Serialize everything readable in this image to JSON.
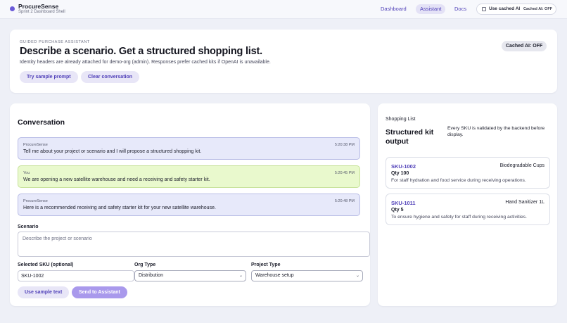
{
  "brand": {
    "name": "ProcureSense",
    "subtitle": "Sprint 2 Dashboard Shell"
  },
  "nav": {
    "dashboard": "Dashboard",
    "assistant": "Assistant",
    "docs": "Docs",
    "active": "Assistant"
  },
  "cached_toggle": {
    "label": "Use cached AI",
    "status": "Cached AI: OFF",
    "checked": false
  },
  "hero": {
    "eyebrow": "GUIDED PURCHASE ASSISTANT",
    "title": "Describe a scenario. Get a structured shopping list.",
    "subtitle": "Identity headers are already attached for demo-org (admin). Responses prefer cached kits if OpenAI is unavailable.",
    "sample_button": "Try sample prompt",
    "clear_button": "Clear conversation",
    "cached_badge": "Cached AI: OFF"
  },
  "conversation": {
    "title": "Conversation",
    "messages": [
      {
        "sender": "ProcureSense",
        "time": "5:20:38 PM",
        "text": "Tell me about your project or scenario and I will propose a structured shopping kit."
      },
      {
        "sender": "You",
        "time": "5:20:45 PM",
        "text": "We are opening a new satellite warehouse and need a receiving and safety starter kit."
      },
      {
        "sender": "ProcureSense",
        "time": "5:20:48 PM",
        "text": "Here is a recommended receiving and safety starter kit for your new satellite warehouse."
      }
    ]
  },
  "form": {
    "scenario_label": "Scenario",
    "scenario_placeholder": "Describe the project or scenario",
    "sku_label": "Selected SKU (optional)",
    "sku_value": "SKU-1002",
    "org_label": "Org Type",
    "org_value": "Distribution",
    "project_label": "Project Type",
    "project_value": "Warehouse setup",
    "use_sample_button": "Use sample text",
    "send_button": "Send to Assistant"
  },
  "shopping_list": {
    "eyebrow": "Shopping List",
    "title": "Structured kit output",
    "note": "Every SKU is validated by the backend before display.",
    "items": [
      {
        "sku": "SKU-1002",
        "name": "Biodegradable Cups",
        "qty": "Qty 100",
        "reason": "For staff hydration and food service during receiving operations."
      },
      {
        "sku": "SKU-1011",
        "name": "Hand Sanitizer 1L",
        "qty": "Qty 5",
        "reason": "To ensure hygiene and safety for staff during receiving activities."
      }
    ]
  },
  "colors": {
    "accent": "#4f3fb8",
    "background": "#eef0f7",
    "assistant_bubble": "#e7e9fa",
    "user_bubble": "#e9f9cd",
    "send_button": "#a999ec"
  },
  "icons": {
    "brand": "brand-dot-icon",
    "select": "chevron-down-icon"
  }
}
